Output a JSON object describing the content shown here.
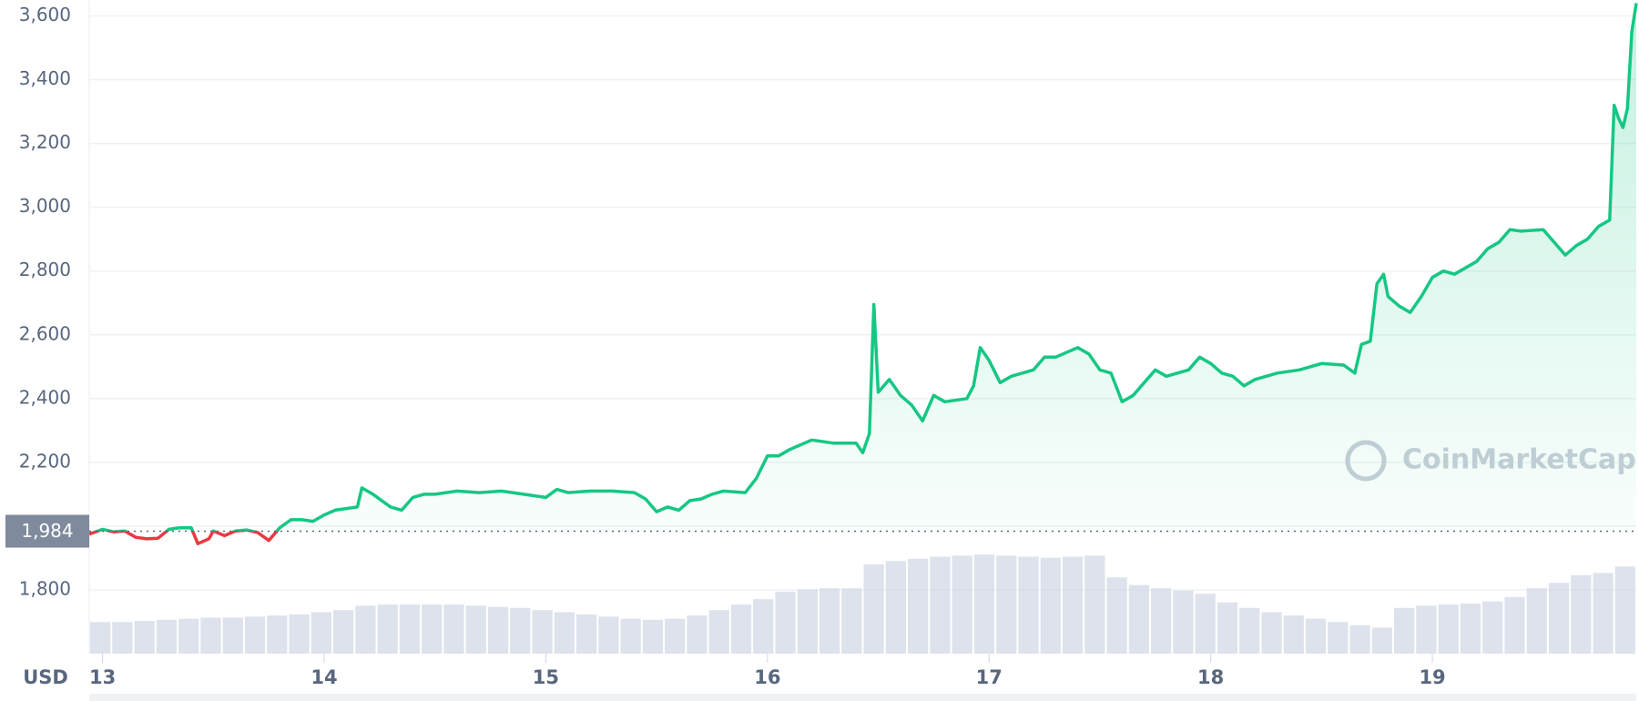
{
  "chart_data": {
    "type": "line",
    "x": [
      12.94,
      13.0,
      13.05,
      13.1,
      13.15,
      13.2,
      13.25,
      13.3,
      13.35,
      13.4,
      13.43,
      13.48,
      13.5,
      13.55,
      13.6,
      13.65,
      13.7,
      13.75,
      13.8,
      13.85,
      13.9,
      13.95,
      14.0,
      14.05,
      14.1,
      14.15,
      14.17,
      14.22,
      14.3,
      14.35,
      14.4,
      14.45,
      14.5,
      14.6,
      14.7,
      14.8,
      14.9,
      15.0,
      15.05,
      15.1,
      15.2,
      15.3,
      15.4,
      15.45,
      15.5,
      15.55,
      15.6,
      15.65,
      15.7,
      15.75,
      15.8,
      15.9,
      15.95,
      16.0,
      16.05,
      16.1,
      16.2,
      16.3,
      16.4,
      16.43,
      16.46,
      16.48,
      16.5,
      16.55,
      16.6,
      16.65,
      16.7,
      16.75,
      16.8,
      16.9,
      16.93,
      16.96,
      17.0,
      17.05,
      17.1,
      17.2,
      17.25,
      17.3,
      17.4,
      17.45,
      17.5,
      17.55,
      17.6,
      17.65,
      17.7,
      17.75,
      17.8,
      17.9,
      17.95,
      18.0,
      18.05,
      18.1,
      18.15,
      18.2,
      18.3,
      18.4,
      18.5,
      18.6,
      18.65,
      18.68,
      18.72,
      18.75,
      18.78,
      18.8,
      18.85,
      18.9,
      18.95,
      19.0,
      19.05,
      19.1,
      19.15,
      19.2,
      19.25,
      19.3,
      19.35,
      19.4,
      19.5,
      19.55,
      19.6,
      19.65,
      19.7,
      19.75,
      19.8,
      19.82,
      19.84,
      19.86,
      19.88,
      19.9,
      19.92
    ],
    "series": [
      {
        "color": "#16c784",
        "below_color": "#ea3943",
        "values": [
          1975,
          1990,
          1982,
          1985,
          1965,
          1960,
          1962,
          1990,
          1995,
          1995,
          1945,
          1960,
          1985,
          1970,
          1985,
          1988,
          1980,
          1955,
          1995,
          2020,
          2020,
          2015,
          2035,
          2050,
          2055,
          2060,
          2120,
          2100,
          2060,
          2050,
          2090,
          2100,
          2100,
          2110,
          2105,
          2110,
          2100,
          2090,
          2115,
          2105,
          2110,
          2110,
          2105,
          2085,
          2045,
          2060,
          2050,
          2080,
          2085,
          2100,
          2110,
          2105,
          2150,
          2220,
          2220,
          2240,
          2270,
          2260,
          2260,
          2230,
          2290,
          2695,
          2420,
          2460,
          2410,
          2380,
          2330,
          2410,
          2390,
          2400,
          2440,
          2560,
          2520,
          2450,
          2470,
          2490,
          2530,
          2530,
          2560,
          2540,
          2490,
          2480,
          2390,
          2410,
          2450,
          2490,
          2470,
          2490,
          2530,
          2510,
          2480,
          2470,
          2440,
          2460,
          2480,
          2490,
          2510,
          2505,
          2480,
          2570,
          2580,
          2760,
          2790,
          2720,
          2690,
          2670,
          2720,
          2780,
          2800,
          2790,
          2810,
          2830,
          2870,
          2890,
          2930,
          2925,
          2930,
          2890,
          2850,
          2880,
          2900,
          2940,
          2960,
          3320,
          3280,
          3250,
          3310,
          3550,
          3640
        ]
      }
    ],
    "reference": {
      "value": 1984,
      "label": "1,984"
    },
    "volume": {
      "color": "#cfd6e4",
      "ylim": [
        0,
        600
      ],
      "values": [
        29,
        29,
        30,
        31,
        32,
        33,
        33,
        34,
        35,
        36,
        38,
        40,
        44,
        45,
        45,
        45,
        45,
        44,
        43,
        42,
        40,
        38,
        36,
        34,
        32,
        31,
        32,
        35,
        40,
        45,
        50,
        57,
        59,
        60,
        60,
        82,
        85,
        87,
        89,
        90,
        91,
        90,
        89,
        88,
        89,
        90,
        70,
        63,
        60,
        58,
        55,
        47,
        42,
        38,
        35,
        32,
        29,
        26,
        24,
        42,
        44,
        45,
        46,
        48,
        52,
        60,
        65,
        72,
        74,
        80
      ]
    },
    "xlim": [
      12.94,
      19.92
    ],
    "xticks": [
      13,
      14,
      15,
      16,
      17,
      18,
      19
    ],
    "ylim": [
      1600,
      3650
    ],
    "yticks": [
      {
        "value": 1800,
        "label": "1,800"
      },
      {
        "value": 2000,
        "label": ""
      },
      {
        "value": 2200,
        "label": "2,200"
      },
      {
        "value": 2400,
        "label": "2,400"
      },
      {
        "value": 2600,
        "label": "2,600"
      },
      {
        "value": 2800,
        "label": "2,800"
      },
      {
        "value": 3000,
        "label": "3,000"
      },
      {
        "value": 3200,
        "label": "3,200"
      },
      {
        "value": 3400,
        "label": "3,400"
      },
      {
        "value": 3600,
        "label": "3,600"
      }
    ],
    "grid": true,
    "currency": "USD",
    "watermark": "CoinMarketCap"
  }
}
